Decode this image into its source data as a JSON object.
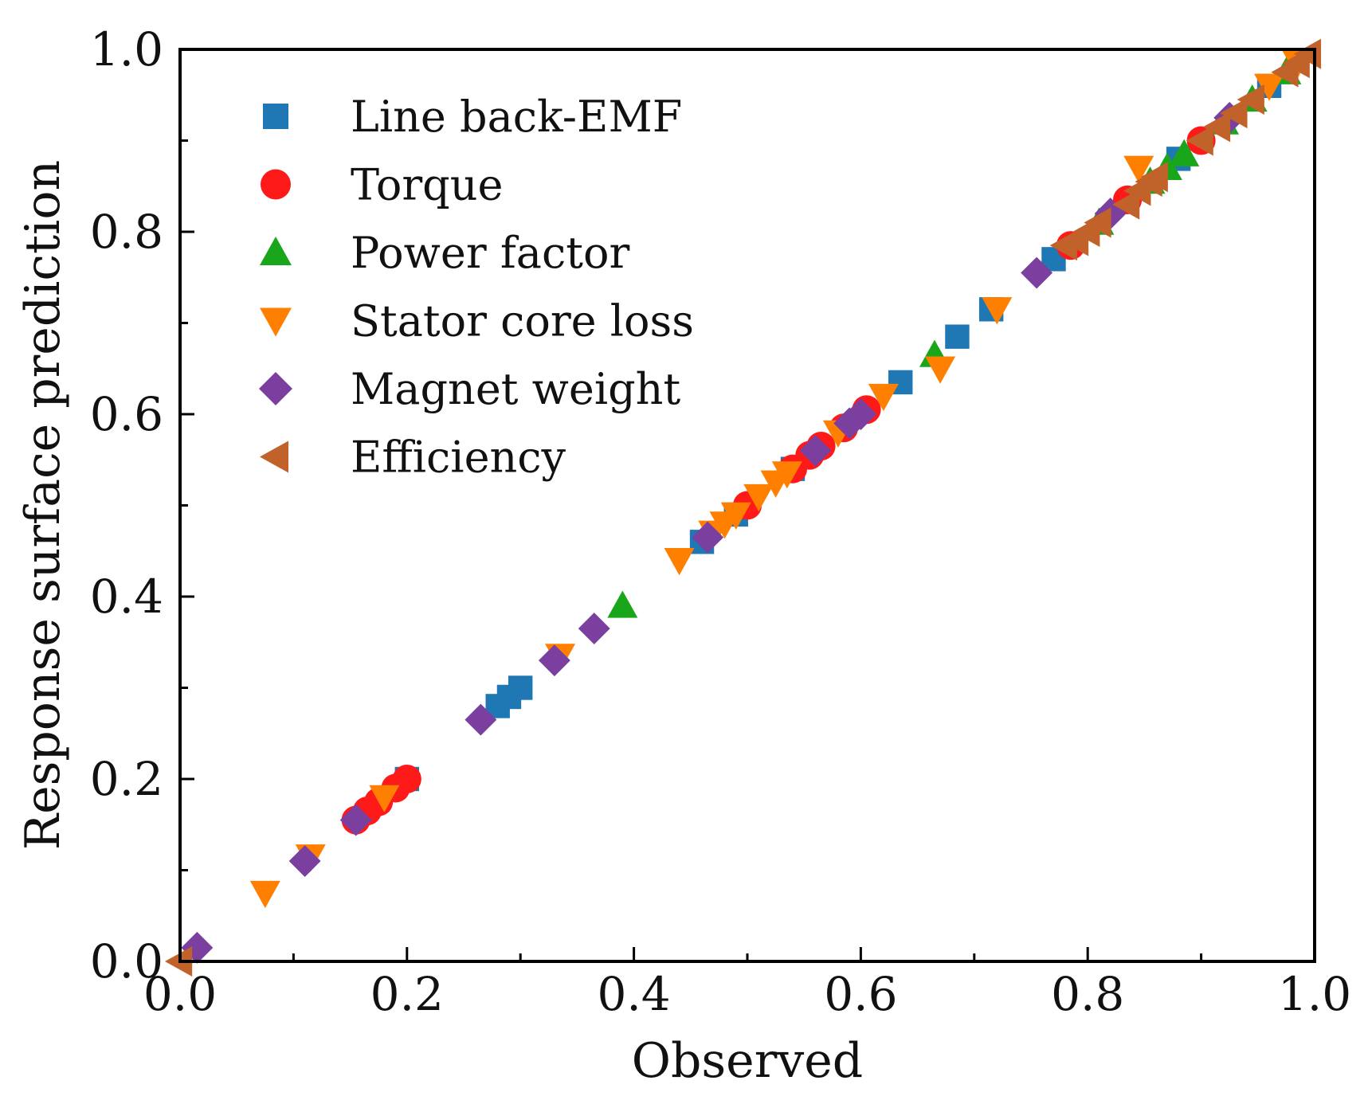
{
  "chart_data": {
    "type": "scatter",
    "title": "",
    "xlabel": "Observed",
    "ylabel": "Response surface prediction",
    "xlim": [
      0.0,
      1.0
    ],
    "ylim": [
      0.0,
      1.0
    ],
    "x_ticks": [
      "0.0",
      "0.2",
      "0.4",
      "0.6",
      "0.8",
      "1.0"
    ],
    "y_ticks": [
      "0.0",
      "0.2",
      "0.4",
      "0.6",
      "0.8",
      "1.0"
    ],
    "grid": false,
    "legend_position": "top-left",
    "series": [
      {
        "name": "Line back-EMF",
        "marker": "square",
        "color": "#1f77b4",
        "points": [
          [
            0.2,
            0.2
          ],
          [
            0.28,
            0.28
          ],
          [
            0.29,
            0.29
          ],
          [
            0.3,
            0.3
          ],
          [
            0.46,
            0.46
          ],
          [
            0.49,
            0.49
          ],
          [
            0.54,
            0.54
          ],
          [
            0.635,
            0.635
          ],
          [
            0.685,
            0.685
          ],
          [
            0.715,
            0.715
          ],
          [
            0.77,
            0.77
          ],
          [
            0.88,
            0.88
          ],
          [
            0.96,
            0.96
          ]
        ]
      },
      {
        "name": "Torque",
        "marker": "circle",
        "color": "#ff1a1a",
        "points": [
          [
            0.155,
            0.155
          ],
          [
            0.165,
            0.165
          ],
          [
            0.175,
            0.175
          ],
          [
            0.19,
            0.19
          ],
          [
            0.2,
            0.2
          ],
          [
            0.5,
            0.5
          ],
          [
            0.54,
            0.54
          ],
          [
            0.555,
            0.555
          ],
          [
            0.565,
            0.565
          ],
          [
            0.585,
            0.585
          ],
          [
            0.605,
            0.605
          ],
          [
            0.785,
            0.785
          ],
          [
            0.835,
            0.835
          ],
          [
            0.9,
            0.9
          ]
        ]
      },
      {
        "name": "Power factor",
        "marker": "triangle-up",
        "color": "#1aa61a",
        "points": [
          [
            0.39,
            0.39
          ],
          [
            0.665,
            0.665
          ],
          [
            0.81,
            0.81
          ],
          [
            0.855,
            0.855
          ],
          [
            0.87,
            0.87
          ],
          [
            0.885,
            0.885
          ],
          [
            0.92,
            0.92
          ],
          [
            0.945,
            0.945
          ],
          [
            0.975,
            0.975
          ]
        ]
      },
      {
        "name": "Stator core loss",
        "marker": "triangle-down",
        "color": "#ff8000",
        "points": [
          [
            0.075,
            0.075
          ],
          [
            0.115,
            0.115
          ],
          [
            0.18,
            0.18
          ],
          [
            0.335,
            0.335
          ],
          [
            0.44,
            0.44
          ],
          [
            0.47,
            0.47
          ],
          [
            0.48,
            0.48
          ],
          [
            0.49,
            0.49
          ],
          [
            0.51,
            0.51
          ],
          [
            0.525,
            0.525
          ],
          [
            0.535,
            0.535
          ],
          [
            0.58,
            0.58
          ],
          [
            0.62,
            0.62
          ],
          [
            0.67,
            0.65
          ],
          [
            0.72,
            0.715
          ],
          [
            0.845,
            0.87
          ],
          [
            0.96,
            0.96
          ],
          [
            0.985,
            0.985
          ]
        ]
      },
      {
        "name": "Magnet weight",
        "marker": "diamond",
        "color": "#7b3fa0",
        "points": [
          [
            0.015,
            0.015
          ],
          [
            0.11,
            0.11
          ],
          [
            0.155,
            0.155
          ],
          [
            0.265,
            0.265
          ],
          [
            0.33,
            0.33
          ],
          [
            0.365,
            0.365
          ],
          [
            0.465,
            0.465
          ],
          [
            0.56,
            0.56
          ],
          [
            0.59,
            0.59
          ],
          [
            0.6,
            0.6
          ],
          [
            0.755,
            0.755
          ],
          [
            0.82,
            0.82
          ],
          [
            0.925,
            0.925
          ]
        ]
      },
      {
        "name": "Efficiency",
        "marker": "triangle-left",
        "color": "#c0622a",
        "points": [
          [
            0.0,
            0.0
          ],
          [
            0.78,
            0.785
          ],
          [
            0.79,
            0.79
          ],
          [
            0.8,
            0.8
          ],
          [
            0.81,
            0.81
          ],
          [
            0.835,
            0.83
          ],
          [
            0.845,
            0.845
          ],
          [
            0.855,
            0.855
          ],
          [
            0.86,
            0.86
          ],
          [
            0.9,
            0.9
          ],
          [
            0.915,
            0.915
          ],
          [
            0.93,
            0.93
          ],
          [
            0.945,
            0.945
          ],
          [
            0.975,
            0.975
          ],
          [
            0.985,
            0.985
          ],
          [
            0.995,
            0.995
          ]
        ]
      }
    ]
  }
}
